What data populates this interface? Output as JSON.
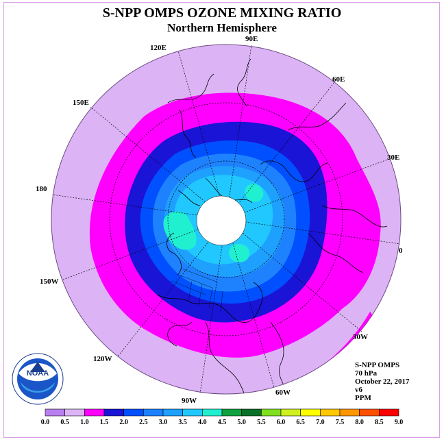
{
  "title": "S-NPP OMPS OZONE MIXING RATIO",
  "subtitle": "Northern Hemisphere",
  "longitude_labels": {
    "e90": "90E",
    "e60": "60E",
    "e30": "30E",
    "zero": "0",
    "w30": "30W",
    "w60": "60W",
    "w90": "90W",
    "w120": "120W",
    "w150": "150W",
    "d180": "180",
    "e150": "150E",
    "e120": "120E"
  },
  "info": {
    "instrument": "S-NPP OMPS",
    "level": "70 hPa",
    "date": "October 22, 2017",
    "version": "v6",
    "units": "PPM"
  },
  "logo": {
    "text": "NOAA",
    "ring_text": "NATIONAL OCEANIC AND ATMOSPHERIC ADMINISTRATION · U.S. DEPARTMENT OF COMMERCE"
  },
  "colorbar": {
    "ticks": [
      "0.0",
      "0.5",
      "1.0",
      "1.5",
      "2.0",
      "2.5",
      "3.0",
      "3.5",
      "4.0",
      "4.5",
      "5.0",
      "5.5",
      "6.0",
      "6.5",
      "7.0",
      "7.5",
      "8.0",
      "8.5",
      "9.0"
    ],
    "colors": [
      "#b97fef",
      "#dcb4f5",
      "#ff00ff",
      "#1a14d6",
      "#0050ff",
      "#1e82ff",
      "#1ea0ff",
      "#20c8ff",
      "#20f0d0",
      "#10a040",
      "#0a7028",
      "#80e020",
      "#d0f020",
      "#ffff00",
      "#ffc800",
      "#ff9600",
      "#ff5000",
      "#ff0000",
      "#a0522d"
    ]
  },
  "map_colors": {
    "background_disc": "#dcb4f5",
    "band_1_0": "#ff00ff",
    "band_1_5": "#1a14d6",
    "band_2_0": "#0050ff",
    "band_2_5": "#1e82ff",
    "band_3_0": "#1ea0ff",
    "band_3_5": "#20c8ff",
    "band_4_0": "#20f0d0",
    "pole_mask": "#ffffff"
  }
}
